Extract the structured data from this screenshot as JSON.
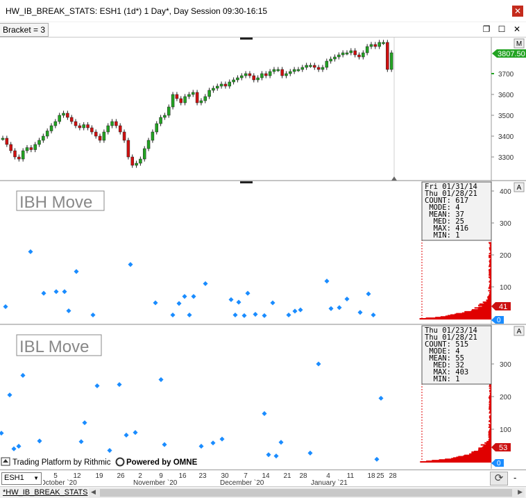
{
  "window": {
    "title": "HW_IB_BREAK_STATS: ESH1 (1d*) 1 Day*, Day Session 09:30-16:15",
    "close_glyph": "✕"
  },
  "toolbar": {
    "bracket_label": "Bracket = 3",
    "restore_glyph": "❐",
    "maximize_glyph": "☐",
    "close_glyph": "✕"
  },
  "price_panel": {
    "m_button": "M",
    "y_ticks": [
      "3700",
      "3600",
      "3500",
      "3400",
      "3300"
    ],
    "last_price": "3807.50"
  },
  "ibh_panel": {
    "label": "IBH Move",
    "a_button": "A",
    "stats": {
      "line1": "Fri 01/31/14",
      "line2": "Thu 01/28/21",
      "count": "COUNT: 617",
      "mode": " MODE: 4",
      "mean": " MEAN: 37",
      "med": "  MED: 25",
      "max": "  MAX: 416",
      "min": "  MIN: 1"
    },
    "y_ticks": [
      "400",
      "300",
      "200",
      "100"
    ],
    "badge_value": "41",
    "zero_badge": "0"
  },
  "ibl_panel": {
    "label": "IBL Move",
    "a_button": "A",
    "stats": {
      "line1": "Thu 01/23/14",
      "line2": "Thu 01/28/21",
      "count": "COUNT: 515",
      "mode": " MODE: 4",
      "mean": " MEAN: 55",
      "med": "  MED: 32",
      "max": "  MAX: 403",
      "min": "  MIN: 1"
    },
    "y_ticks": [
      "300",
      "200",
      "100"
    ],
    "badge_value": "53",
    "zero_badge": "0",
    "footer_left": "Trading Platform by Rithmic",
    "footer_right": "Powered by OMNE"
  },
  "time_axis": {
    "days": [
      "5",
      "12",
      "19",
      "26",
      "2",
      "9",
      "16",
      "23",
      "30",
      "7",
      "14",
      "21",
      "28",
      "4",
      "11",
      "18",
      "25",
      "28"
    ],
    "months": [
      "October `20",
      "November `20",
      "December `20",
      "January `21"
    ]
  },
  "footer": {
    "symbol": "ESH1",
    "reload_glyph": "⟳",
    "minus_label": "-"
  },
  "statusbar": {
    "tab_label": "*HW_IB_BREAK_STATS",
    "left_arrow": "◀",
    "right_arrow": "▶"
  },
  "colors": {
    "up": "#22a322",
    "down": "#d01010",
    "dot": "#1a8cff",
    "hist": "#e00000",
    "badge_blue": "#1a8cff",
    "badge_red": "#cc1111",
    "badge_green": "#22a322"
  }
}
